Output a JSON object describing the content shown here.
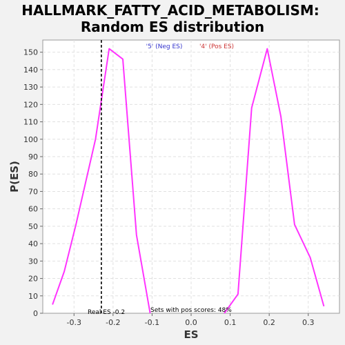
{
  "chart_data": {
    "type": "line",
    "title": [
      "HALLMARK_FATTY_ACID_METABOLISM:",
      "Random ES distribution"
    ],
    "xlabel": "ES",
    "ylabel": "P(ES)",
    "xlim": [
      -0.38,
      0.38
    ],
    "ylim": [
      0,
      157
    ],
    "xticks": [
      -0.3,
      -0.2,
      -0.1,
      0.0,
      0.1,
      0.2,
      0.3
    ],
    "xtick_labels": [
      "-0.3",
      "-0.2",
      "-0.1",
      "0.0",
      "0.1",
      "0.2",
      "0.3"
    ],
    "yticks": [
      0,
      10,
      20,
      30,
      40,
      50,
      60,
      70,
      80,
      90,
      100,
      110,
      120,
      130,
      140,
      150
    ],
    "grid": true,
    "series_color": "#ff33ff",
    "neg_series": {
      "x": [
        -0.355,
        -0.325,
        -0.295,
        -0.245,
        -0.21,
        -0.175,
        -0.14,
        -0.105
      ],
      "y": [
        5,
        24,
        51,
        100,
        152,
        146,
        45,
        0
      ]
    },
    "pos_series": {
      "x": [
        0.085,
        0.12,
        0.155,
        0.195,
        0.23,
        0.265,
        0.305,
        0.34
      ],
      "y": [
        0,
        11,
        118,
        152,
        113,
        51,
        32,
        4
      ]
    },
    "real_es": -0.23,
    "real_es_label": "Real ES -0.2",
    "neg_label": "'5' (Neg ES)",
    "neg_label_color": "#3333cc",
    "pos_label": "'4' (Pos ES)",
    "pos_label_color": "#cc3333",
    "pos_scores_label": "Sets with pos scores: 48%"
  }
}
